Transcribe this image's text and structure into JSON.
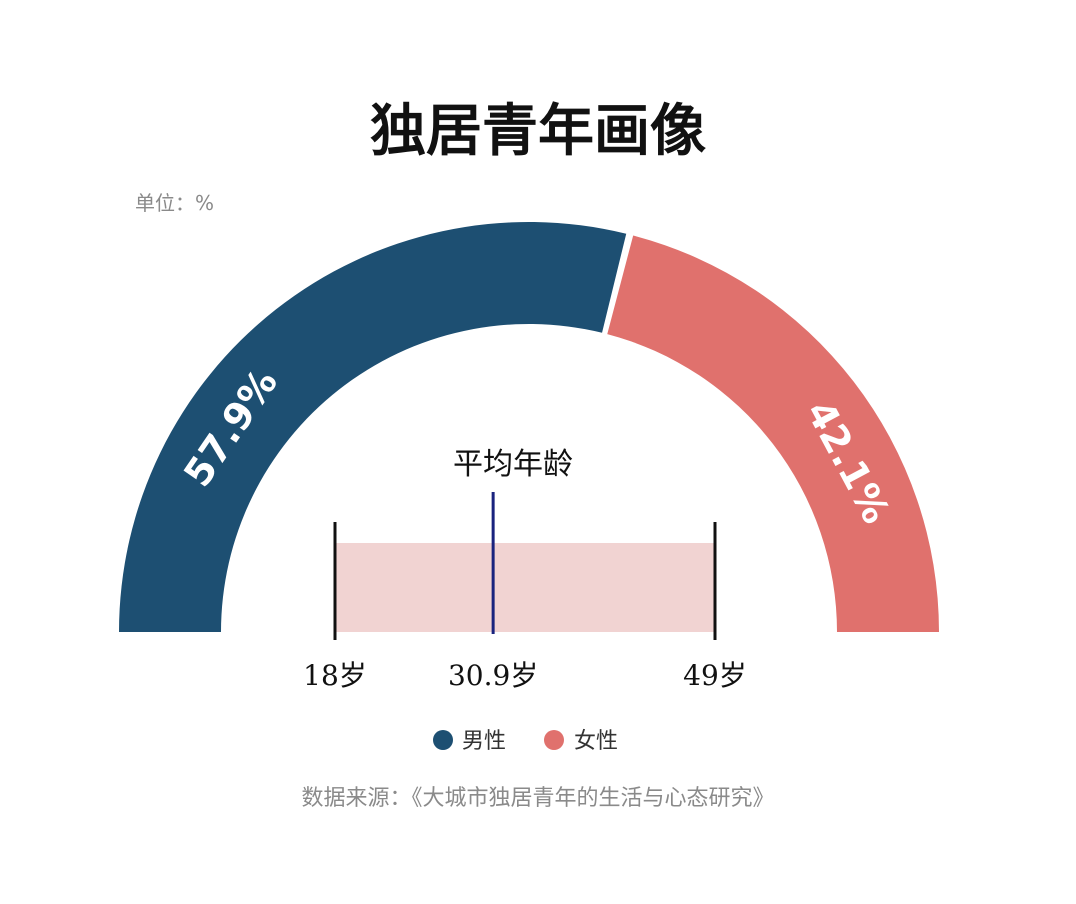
{
  "chart_data": [
    {
      "type": "pie",
      "variant": "semicircle-donut",
      "title": "独居青年画像",
      "unit_label": "单位：%",
      "slices": [
        {
          "name": "男性",
          "value": 57.9,
          "label": "57.9%",
          "color": "#1d4f72"
        },
        {
          "name": "女性",
          "value": 42.1,
          "label": "42.1%",
          "color": "#e0716d"
        }
      ],
      "legend_placement": "bottom-center"
    },
    {
      "type": "range",
      "title": "平均年龄",
      "min": 18,
      "max": 49,
      "mean": 30.9,
      "tick_labels": [
        "18岁",
        "30.9岁",
        "49岁"
      ],
      "bar_color": "#f1d3d2",
      "mean_line_color": "#1a237e"
    }
  ],
  "source": "数据来源：《大城市独居青年的生活与心态研究》"
}
